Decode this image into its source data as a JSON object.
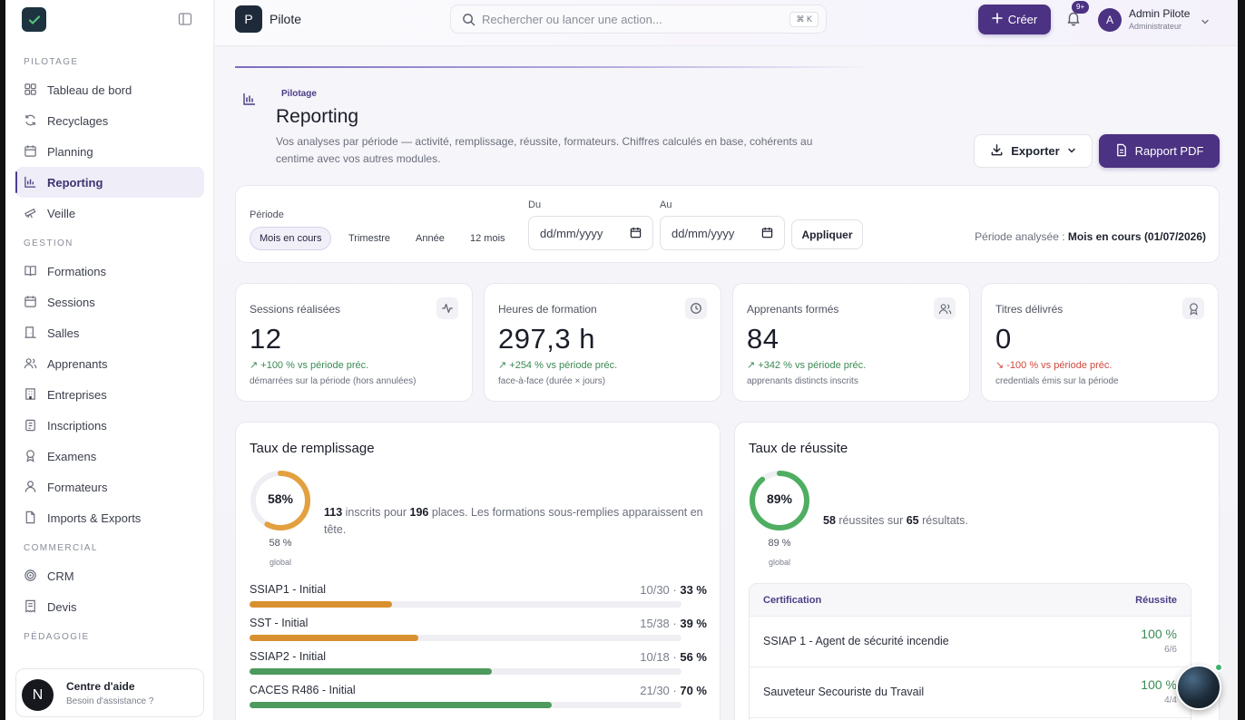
{
  "app": {
    "workspace_initial": "P",
    "workspace_name": "Pilote"
  },
  "search": {
    "placeholder": "Rechercher ou lancer une action...",
    "shortcut": "⌘ K"
  },
  "header": {
    "create_label": "Créer",
    "notif_count": "9+",
    "user_initial": "A",
    "user_name": "Admin Pilote",
    "user_role": "Administrateur"
  },
  "sidebar": {
    "sections": [
      {
        "title": "PILOTAGE",
        "items": [
          {
            "label": "Tableau de bord",
            "icon": "grid-icon"
          },
          {
            "label": "Recyclages",
            "icon": "refresh-icon"
          },
          {
            "label": "Planning",
            "icon": "calendar-icon"
          },
          {
            "label": "Reporting",
            "icon": "chart-icon",
            "active": true
          },
          {
            "label": "Veille",
            "icon": "telescope-icon"
          }
        ]
      },
      {
        "title": "GESTION",
        "items": [
          {
            "label": "Formations",
            "icon": "book-icon"
          },
          {
            "label": "Sessions",
            "icon": "calendar-icon"
          },
          {
            "label": "Salles",
            "icon": "door-icon"
          },
          {
            "label": "Apprenants",
            "icon": "users-icon"
          },
          {
            "label": "Entreprises",
            "icon": "building-icon"
          },
          {
            "label": "Inscriptions",
            "icon": "clipboard-icon"
          },
          {
            "label": "Examens",
            "icon": "award-icon"
          },
          {
            "label": "Formateurs",
            "icon": "user-icon"
          },
          {
            "label": "Imports & Exports",
            "icon": "file-icon"
          }
        ]
      },
      {
        "title": "COMMERCIAL",
        "items": [
          {
            "label": "CRM",
            "icon": "target-icon"
          },
          {
            "label": "Devis",
            "icon": "receipt-icon"
          }
        ]
      },
      {
        "title": "PÉDAGOGIE",
        "items": []
      }
    ],
    "help": {
      "initial": "N",
      "title": "Centre d'aide",
      "subtitle": "Besoin d'assistance ?"
    }
  },
  "page": {
    "breadcrumb": "Pilotage",
    "title": "Reporting",
    "description": "Vos analyses par période — activité, remplissage, réussite, formateurs. Chiffres calculés en base, cohérents au centime avec vos autres modules.",
    "export_label": "Exporter",
    "pdf_label": "Rapport PDF"
  },
  "filters": {
    "period_label": "Période",
    "segments": [
      "Mois en cours",
      "Trimestre",
      "Année",
      "12 mois"
    ],
    "from_label": "Du",
    "to_label": "Au",
    "from_value": "dd/mm/yyyy",
    "to_value": "dd/mm/yyyy",
    "apply_label": "Appliquer",
    "analyzed_prefix": "Période analysée :",
    "analyzed_value": "Mois en cours (01/07/2026)"
  },
  "kpis": [
    {
      "label": "Sessions réalisées",
      "value": "12",
      "delta": "↗ +100 % vs période préc.",
      "sub": "démarrées sur la période (hors annulées)",
      "icon": "activity-icon",
      "negative": false
    },
    {
      "label": "Heures de formation",
      "value": "297,3 h",
      "delta": "↗ +254 % vs période préc.",
      "sub": "face-à-face (durée × jours)",
      "icon": "clock-icon",
      "negative": false
    },
    {
      "label": "Apprenants formés",
      "value": "84",
      "delta": "↗ +342 % vs période préc.",
      "sub": "apprenants distincts inscrits",
      "icon": "users-icon",
      "negative": false
    },
    {
      "label": "Titres délivrés",
      "value": "0",
      "delta": "↘ -100 % vs période préc.",
      "sub": "credentials émis sur la période",
      "icon": "award-icon",
      "negative": true
    }
  ],
  "fill": {
    "title": "Taux de remplissage",
    "percent": 58,
    "percent_label": "58%",
    "percent_caption": "58 %",
    "caption": "global",
    "enrolled": "113",
    "text1": "inscrits pour",
    "places": "196",
    "text2": "places. Les formations sous-remplies apparaissent en tête.",
    "rows": [
      {
        "name": "SSIAP1 - Initial",
        "ratio": "10/30",
        "pct_label": "33 %",
        "pct": 33,
        "color": "#d8902f"
      },
      {
        "name": "SST - Initial",
        "ratio": "15/38",
        "pct_label": "39 %",
        "pct": 39,
        "color": "#d8902f"
      },
      {
        "name": "SSIAP2 - Initial",
        "ratio": "10/18",
        "pct_label": "56 %",
        "pct": 56,
        "color": "#4e9a5e"
      },
      {
        "name": "CACES R486 - Initial",
        "ratio": "21/30",
        "pct_label": "70 %",
        "pct": 70,
        "color": "#4e9a5e"
      }
    ]
  },
  "success": {
    "title": "Taux de réussite",
    "percent": 89,
    "percent_label": "89%",
    "percent_caption": "89 %",
    "caption": "global",
    "passed": "58",
    "text1": "réussites sur",
    "total": "65",
    "text2": "résultats.",
    "table_head": {
      "cert": "Certification",
      "rate": "Réussite"
    },
    "rows": [
      {
        "name": "SSIAP 1 - Agent de sécurité incendie",
        "pct": "100 %",
        "frac": "6/6"
      },
      {
        "name": "Sauveteur Secouriste du Travail",
        "pct": "100 %",
        "frac": "4/4"
      }
    ]
  },
  "colors": {
    "accent": "#4b3282",
    "positive": "#3b8a54",
    "negative": "#d0493d",
    "donut_fill": "#e3a03f",
    "donut_success": "#4fae61"
  }
}
